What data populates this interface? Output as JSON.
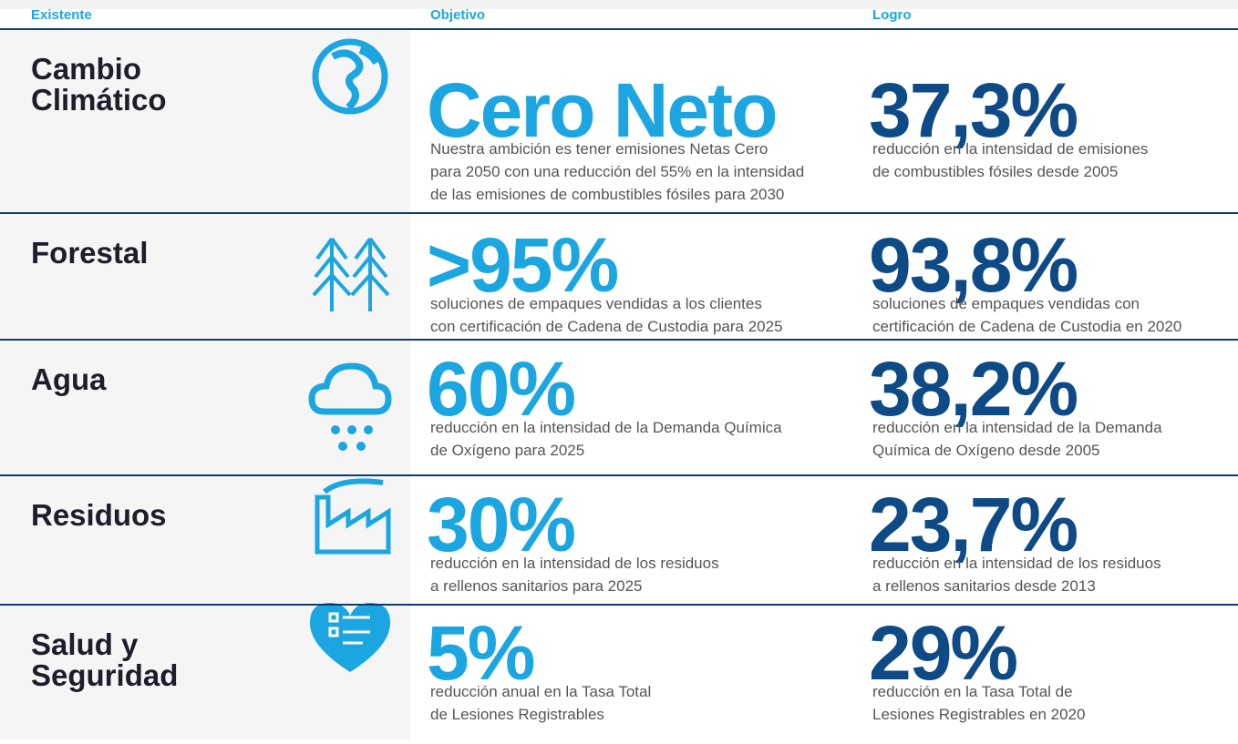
{
  "header": {
    "columns": [
      "Existente",
      "Objetivo",
      "Logro"
    ]
  },
  "rows": [
    {
      "label": [
        "Cambio",
        "Climático"
      ],
      "target": "Cero Neto",
      "target_text": [
        "Nuestra ambición es tener emisiones Netas Cero",
        "para 2050 con una reducción del 55% en la intensidad",
        "de las emisiones de combustibles fósiles para 2030"
      ],
      "achievement": "37,3%",
      "achievement_text": [
        "reducción en la intensidad de emisiones",
        "de combustibles fósiles desde 2005"
      ]
    },
    {
      "label": [
        "Forestal"
      ],
      "target": ">95%",
      "target_text": [
        "soluciones de empaques vendidas a los clientes",
        "con certificación de Cadena de Custodia para 2025"
      ],
      "achievement": "93,8%",
      "achievement_text": [
        "soluciones de empaques vendidas con",
        "certificación de Cadena de Custodia en 2020"
      ]
    },
    {
      "label": [
        "Agua"
      ],
      "target": "60%",
      "target_text": [
        "reducción en la intensidad de la Demanda Química",
        "de Oxígeno para 2025"
      ],
      "achievement": "38,2%",
      "achievement_text": [
        "reducción en la intensidad de la Demanda",
        "Química de Oxígeno desde 2005"
      ]
    },
    {
      "label": [
        "Residuos"
      ],
      "target": "30%",
      "target_text": [
        "reducción en la intensidad de los residuos",
        "a rellenos sanitarios para 2025"
      ],
      "achievement": "23,7%",
      "achievement_text": [
        "reducción en la intensidad de los residuos",
        "a rellenos sanitarios desde 2013"
      ]
    },
    {
      "label": [
        "Salud y",
        "Seguridad"
      ],
      "target": "5%",
      "target_text": [
        "reducción anual en la Tasa Total",
        "de Lesiones Registrables"
      ],
      "achievement": "29%",
      "achievement_text": [
        "reducción en la Tasa Total de",
        "Lesiones Registrables en 2020"
      ]
    }
  ]
}
